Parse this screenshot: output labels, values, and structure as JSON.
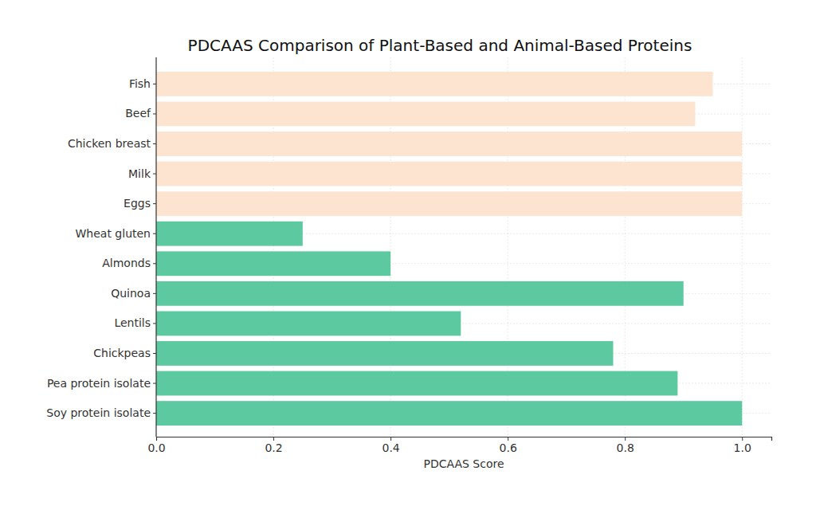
{
  "chart_data": {
    "type": "bar",
    "title": "PDCAAS Comparison of Plant-Based and Animal-Based Proteins",
    "orientation": "horizontal",
    "categories": [
      "Fish",
      "Beef",
      "Chicken breast",
      "Milk",
      "Eggs",
      "Wheat gluten",
      "Almonds",
      "Quinoa",
      "Lentils",
      "Chickpeas",
      "Pea protein isolate",
      "Soy protein isolate"
    ],
    "values": [
      0.95,
      0.92,
      1.0,
      1.0,
      1.0,
      0.25,
      0.4,
      0.9,
      0.52,
      0.78,
      0.89,
      1.0
    ],
    "colors": [
      "#fde4d0",
      "#fde4d0",
      "#fde4d0",
      "#fde4d0",
      "#fde4d0",
      "#5cc9a0",
      "#5cc9a0",
      "#5cc9a0",
      "#5cc9a0",
      "#5cc9a0",
      "#5cc9a0",
      "#5cc9a0"
    ],
    "x_label": "PDCAAS Score",
    "xlim": [
      0,
      1.05
    ],
    "xticks": [
      {
        "value": 0,
        "label": "0.0"
      },
      0.2,
      0.4,
      0.6,
      0.8,
      {
        "value": 1.0,
        "label": "1.0"
      }
    ],
    "grid": true
  }
}
